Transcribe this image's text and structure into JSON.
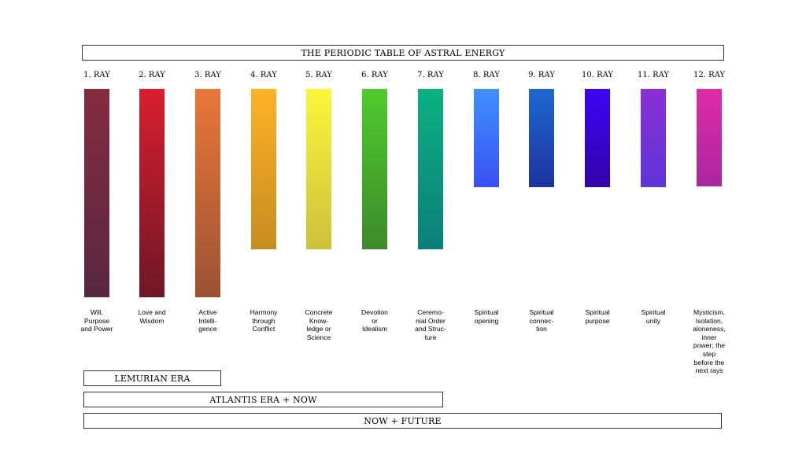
{
  "title": "THE PERIODIC TABLE OF ASTRAL ENERGY",
  "rays": [
    {
      "label": "1. RAY",
      "description": "Will,\nPurpose\nand Power",
      "top_color": "#862b40",
      "bottom_color": "#572840"
    },
    {
      "label": "2. RAY",
      "description": "Love and\nWisdom",
      "top_color": "#d91e2e",
      "bottom_color": "#6f1727"
    },
    {
      "label": "3. RAY",
      "description": "Active\nIntelli-\ngence",
      "top_color": "#ea773a",
      "bottom_color": "#9a5233"
    },
    {
      "label": "4. RAY",
      "description": "Harmony\nthrough\nConflict",
      "top_color": "#fdb226",
      "bottom_color": "#c78c21"
    },
    {
      "label": "5. RAY",
      "description": "Concrete\nKnow-\nledge or\nScience",
      "top_color": "#fdf53b",
      "bottom_color": "#ccc13b"
    },
    {
      "label": "6. RAY",
      "description": "Devotion\nor\nIdealism",
      "top_color": "#4fcc2d",
      "bottom_color": "#3d8a2b"
    },
    {
      "label": "7. RAY",
      "description": "Ceremo-\nnial Order\nand Struc-\nture",
      "top_color": "#0bb181",
      "bottom_color": "#0b7f7a"
    },
    {
      "label": "8. RAY",
      "description": "Spiritual\nopening",
      "top_color": "#3f91fd",
      "bottom_color": "#3a4ff2"
    },
    {
      "label": "9. RAY",
      "description": "Spiritual\nconnec-\ntion",
      "top_color": "#1f68d0",
      "bottom_color": "#1c32a0"
    },
    {
      "label": "10. RAY",
      "description": "Spiritual\npurpose",
      "top_color": "#3b05f5",
      "bottom_color": "#3303a8"
    },
    {
      "label": "11. RAY",
      "description": "Spiritual\nunity",
      "top_color": "#8b2ed6",
      "bottom_color": "#5d35d8"
    },
    {
      "label": "12. RAY",
      "description": "Mysticism,\nIsolation,\naloneness,\ninner\npower; the\nstep\nbefore the\nnext rays",
      "top_color": "#e12ba7",
      "bottom_color": "#a8269f"
    }
  ],
  "eras": {
    "lemurian": "LEMURIAN ERA",
    "atlantis": "ATLANTIS ERA + NOW",
    "future": "NOW + FUTURE"
  }
}
